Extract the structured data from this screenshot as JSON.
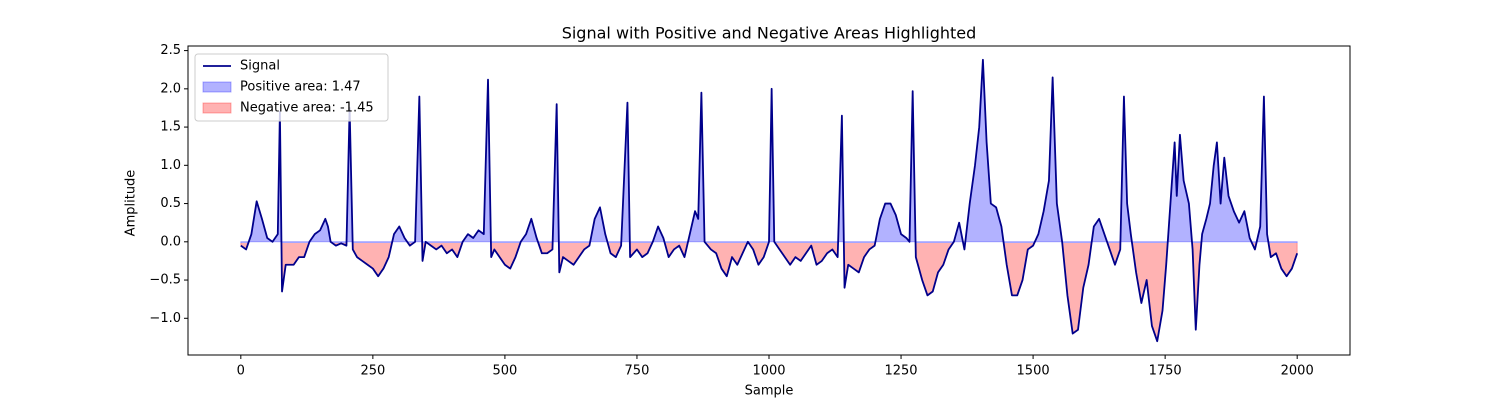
{
  "chart_data": {
    "type": "line",
    "title": "Signal with Positive and Negative Areas Highlighted",
    "xlabel": "Sample",
    "ylabel": "Amplitude",
    "xlim": [
      -100,
      2100
    ],
    "xticks": [
      0,
      250,
      500,
      750,
      1000,
      1250,
      1500,
      1750,
      2000
    ],
    "ylim": [
      -1.48,
      2.56
    ],
    "yticks": [
      {
        "value": -1,
        "label": "−1.0"
      },
      {
        "value": -0.5,
        "label": "−0.5"
      },
      {
        "value": 0,
        "label": "0.0"
      },
      0.5,
      {
        "value": 1,
        "label": "1.0"
      },
      1.5,
      {
        "value": 2,
        "label": "2.0"
      },
      2.5
    ],
    "legend": "upper left",
    "x": [
      0,
      10,
      20,
      30,
      40,
      50,
      60,
      70,
      74,
      78,
      85,
      100,
      110,
      120,
      130,
      140,
      150,
      160,
      165,
      170,
      180,
      190,
      200,
      206,
      212,
      220,
      230,
      240,
      250,
      260,
      270,
      280,
      290,
      300,
      310,
      320,
      330,
      338,
      344,
      350,
      360,
      370,
      380,
      390,
      400,
      410,
      420,
      430,
      440,
      450,
      460,
      468,
      474,
      480,
      490,
      500,
      510,
      520,
      530,
      540,
      550,
      560,
      570,
      580,
      590,
      598,
      603,
      610,
      620,
      630,
      640,
      650,
      660,
      670,
      680,
      690,
      700,
      710,
      720,
      732,
      737,
      750,
      760,
      770,
      780,
      790,
      800,
      810,
      820,
      830,
      840,
      850,
      860,
      866,
      872,
      878,
      890,
      900,
      910,
      920,
      930,
      940,
      950,
      960,
      970,
      980,
      990,
      1000,
      1005,
      1010,
      1020,
      1030,
      1040,
      1050,
      1060,
      1070,
      1080,
      1090,
      1100,
      1110,
      1120,
      1130,
      1138,
      1143,
      1150,
      1160,
      1170,
      1180,
      1190,
      1200,
      1210,
      1220,
      1230,
      1240,
      1250,
      1260,
      1266,
      1272,
      1278,
      1290,
      1300,
      1310,
      1320,
      1330,
      1340,
      1350,
      1360,
      1370,
      1380,
      1390,
      1398,
      1405,
      1412,
      1420,
      1430,
      1440,
      1450,
      1460,
      1470,
      1480,
      1490,
      1500,
      1510,
      1520,
      1530,
      1537,
      1545,
      1555,
      1565,
      1575,
      1585,
      1595,
      1605,
      1615,
      1625,
      1635,
      1645,
      1655,
      1665,
      1672,
      1678,
      1685,
      1695,
      1705,
      1715,
      1725,
      1735,
      1745,
      1752,
      1760,
      1768,
      1772,
      1778,
      1785,
      1795,
      1802,
      1808,
      1815,
      1820,
      1828,
      1835,
      1842,
      1848,
      1855,
      1862,
      1870,
      1880,
      1890,
      1900,
      1910,
      1920,
      1930,
      1937,
      1943,
      1950,
      1960,
      1970,
      1980,
      1990,
      2000
    ],
    "series": [
      {
        "name": "Signal",
        "color": "#00008b",
        "values": [
          -0.05,
          -0.1,
          0.1,
          0.53,
          0.3,
          0.05,
          0.0,
          0.1,
          1.7,
          -0.65,
          -0.3,
          -0.3,
          -0.2,
          -0.2,
          0.0,
          0.1,
          0.15,
          0.3,
          0.2,
          0.0,
          -0.05,
          -0.02,
          -0.05,
          1.75,
          -0.1,
          -0.2,
          -0.25,
          -0.3,
          -0.35,
          -0.45,
          -0.35,
          -0.2,
          0.1,
          0.2,
          0.05,
          -0.05,
          0.0,
          1.9,
          -0.25,
          0.0,
          -0.05,
          -0.1,
          -0.05,
          -0.15,
          -0.1,
          -0.2,
          0.0,
          0.1,
          0.05,
          0.15,
          0.1,
          2.12,
          -0.2,
          -0.1,
          -0.2,
          -0.3,
          -0.35,
          -0.2,
          0.0,
          0.1,
          0.3,
          0.05,
          -0.15,
          -0.15,
          -0.1,
          1.8,
          -0.4,
          -0.2,
          -0.25,
          -0.3,
          -0.2,
          -0.1,
          -0.05,
          0.3,
          0.45,
          0.1,
          -0.15,
          -0.2,
          -0.05,
          1.82,
          -0.2,
          -0.1,
          -0.2,
          -0.15,
          0.0,
          0.2,
          0.05,
          -0.2,
          -0.1,
          -0.05,
          -0.2,
          0.1,
          0.4,
          0.3,
          1.95,
          0.0,
          -0.1,
          -0.15,
          -0.35,
          -0.45,
          -0.2,
          -0.3,
          -0.15,
          0.0,
          -0.1,
          -0.3,
          -0.2,
          0.0,
          2.0,
          0.0,
          -0.1,
          -0.2,
          -0.3,
          -0.2,
          -0.25,
          -0.15,
          -0.05,
          -0.3,
          -0.25,
          -0.15,
          -0.1,
          -0.2,
          1.65,
          -0.6,
          -0.3,
          -0.35,
          -0.4,
          -0.2,
          -0.1,
          -0.05,
          0.3,
          0.5,
          0.5,
          0.35,
          0.1,
          0.05,
          0.0,
          1.97,
          -0.2,
          -0.5,
          -0.7,
          -0.65,
          -0.4,
          -0.3,
          -0.1,
          0.0,
          0.25,
          -0.1,
          0.5,
          1.0,
          1.5,
          2.38,
          1.3,
          0.5,
          0.45,
          0.2,
          -0.3,
          -0.7,
          -0.7,
          -0.5,
          -0.1,
          -0.05,
          0.1,
          0.4,
          0.8,
          2.15,
          0.5,
          0.0,
          -0.7,
          -1.2,
          -1.15,
          -0.6,
          -0.3,
          0.2,
          0.3,
          0.1,
          -0.1,
          -0.3,
          -0.1,
          1.9,
          0.5,
          0.1,
          -0.4,
          -0.8,
          -0.5,
          -1.1,
          -1.3,
          -0.9,
          -0.3,
          0.5,
          1.3,
          0.6,
          1.4,
          0.8,
          0.5,
          -0.1,
          -1.15,
          -0.3,
          0.1,
          0.3,
          0.5,
          1.0,
          1.3,
          0.5,
          1.1,
          0.6,
          0.4,
          0.25,
          0.4,
          0.05,
          -0.1,
          0.2,
          1.9,
          0.1,
          -0.2,
          -0.15,
          -0.35,
          -0.45,
          -0.35,
          -0.15
        ]
      }
    ],
    "fills": [
      {
        "name": "Positive area: 1.47",
        "color": "#0000ff",
        "alpha": 0.3,
        "side": "positive"
      },
      {
        "name": "Negative area: -1.45",
        "color": "#ff0000",
        "alpha": 0.3,
        "side": "negative"
      }
    ]
  }
}
